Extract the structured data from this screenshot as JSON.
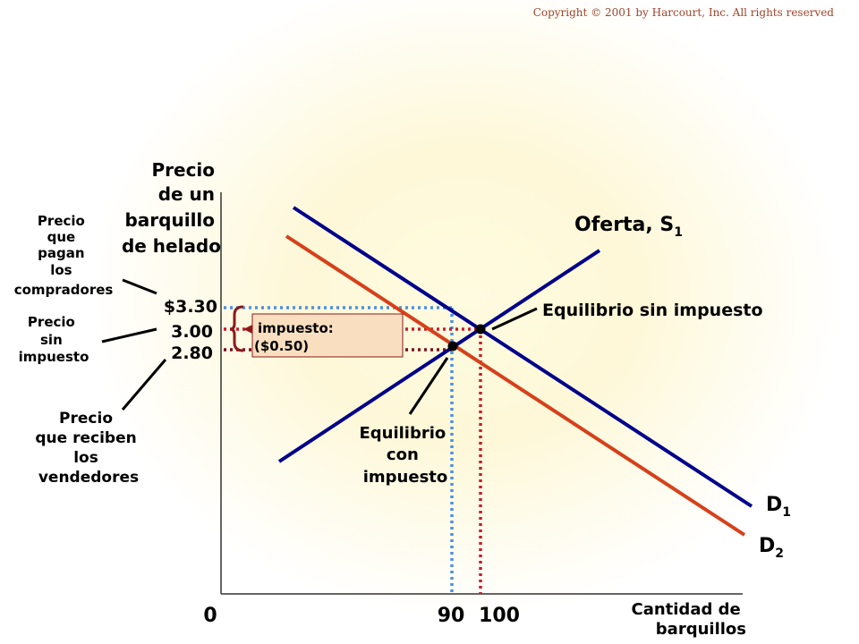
{
  "copyright": "Copyright © 2001 by Harcourt, Inc. All rights reserved",
  "y_axis_title": [
    "Precio",
    "de un",
    "barquillo",
    "de helado"
  ],
  "x_axis_title": [
    "Cantidad de",
    "barquillos"
  ],
  "origin_label": "0",
  "price_labels": {
    "p1": "$3.30",
    "p2": "3.00",
    "p3": "2.80"
  },
  "quantity_labels": {
    "q1": "90",
    "q2": "100"
  },
  "tax_box": [
    "impuesto:",
    "($0.50)"
  ],
  "supply_label": {
    "text": "Oferta, S",
    "sub": "1"
  },
  "demand1_label": {
    "text": "D",
    "sub": "1"
  },
  "demand2_label": {
    "text": "D",
    "sub": "2"
  },
  "eq_no_tax_label": "Equilibrio sin impuesto",
  "eq_tax_label": [
    "Equilibrio",
    "con",
    "impuesto"
  ],
  "buyers_price_label": [
    "Precio",
    "que",
    "pagan",
    "los",
    "compradores"
  ],
  "no_tax_price_label": [
    "Precio",
    "sin",
    "impuesto"
  ],
  "sellers_price_label": [
    "Precio",
    "que reciben",
    "los",
    "vendedores"
  ],
  "colors": {
    "supply": "#00008b",
    "demand1": "#00008b",
    "demand2": "#d6401a",
    "buyers_line": "#4a90e2",
    "no_tax_line": "#cc1a2a",
    "sellers_line": "#7a1020",
    "tax_box_fill": "#f9dfc0",
    "tax_box_border": "#8b1a1a",
    "copyright": "#a0432a"
  }
}
